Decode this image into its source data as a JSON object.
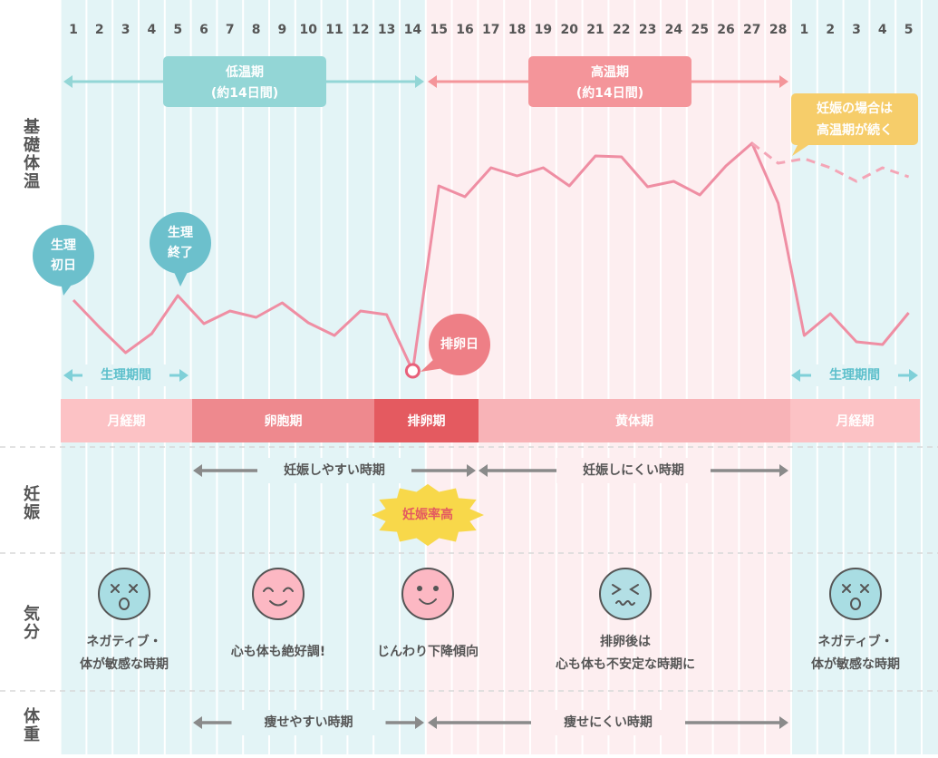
{
  "chart_data": {
    "type": "line",
    "y_label": "基礎体温",
    "days": [
      1,
      2,
      3,
      4,
      5,
      6,
      7,
      8,
      9,
      10,
      11,
      12,
      13,
      14,
      15,
      16,
      17,
      18,
      19,
      20,
      21,
      22,
      23,
      24,
      25,
      26,
      27,
      28,
      1,
      2,
      3,
      4,
      5
    ],
    "ylim": [
      0,
      300
    ],
    "series": [
      {
        "color": "#ef8ea3",
        "dashed": false,
        "values": [
          89,
          59,
          31,
          52,
          94,
          63,
          77,
          70,
          86,
          64,
          50,
          77,
          73,
          11,
          215,
          203,
          235,
          226,
          235,
          215,
          248,
          247,
          214,
          220,
          205,
          237,
          262,
          196,
          50,
          74,
          43,
          40,
          75
        ]
      },
      {
        "color": "#f4a5b6",
        "dashed": true,
        "values": [
          null,
          null,
          null,
          null,
          null,
          null,
          null,
          null,
          null,
          null,
          null,
          null,
          null,
          null,
          null,
          null,
          null,
          null,
          null,
          null,
          null,
          null,
          null,
          null,
          null,
          null,
          262,
          240,
          245,
          235,
          220,
          235,
          225
        ]
      }
    ]
  },
  "periods": [
    {
      "label": "低温期",
      "note": "(約14日間)",
      "color": "#93d6d6"
    },
    {
      "label": "高温期",
      "note": "(約14日間)",
      "color": "#f4959a"
    }
  ],
  "callouts": {
    "first_day": [
      "生理",
      "初日"
    ],
    "last_day": [
      "生理",
      "終了"
    ],
    "ovulation_day": "排卵日",
    "pregnancy_note": [
      "妊娠の場合は",
      "高温期が続く"
    ]
  },
  "menstruation": [
    "生理期間",
    "生理期間"
  ],
  "phases": [
    {
      "label": "月経期",
      "color": "#fcc2c5"
    },
    {
      "label": "卵胞期",
      "color": "#ee898e"
    },
    {
      "label": "排卵期",
      "color": "#e45a60"
    },
    {
      "label": "黄体期",
      "color": "#f8b3b7"
    },
    {
      "label": "月経期",
      "color": "#fcc2c5"
    }
  ],
  "fertility": {
    "label": "妊娠",
    "spans": [
      "妊娠しやすい時期",
      "妊娠しにくい時期"
    ],
    "burst": "妊娠率高"
  },
  "mood": {
    "label": "気分",
    "items": [
      [
        "ネガティブ・",
        "体が敏感な時期"
      ],
      [
        "心も体も絶好調!"
      ],
      [
        "じんわり下降傾向"
      ],
      [
        "排卵後は",
        "心も体も不安定な時期に"
      ],
      [
        "ネガティブ・",
        "体が敏感な時期"
      ]
    ]
  },
  "weight": {
    "label": "体重",
    "spans": [
      "痩せやすい時期",
      "痩せにくい時期"
    ]
  }
}
